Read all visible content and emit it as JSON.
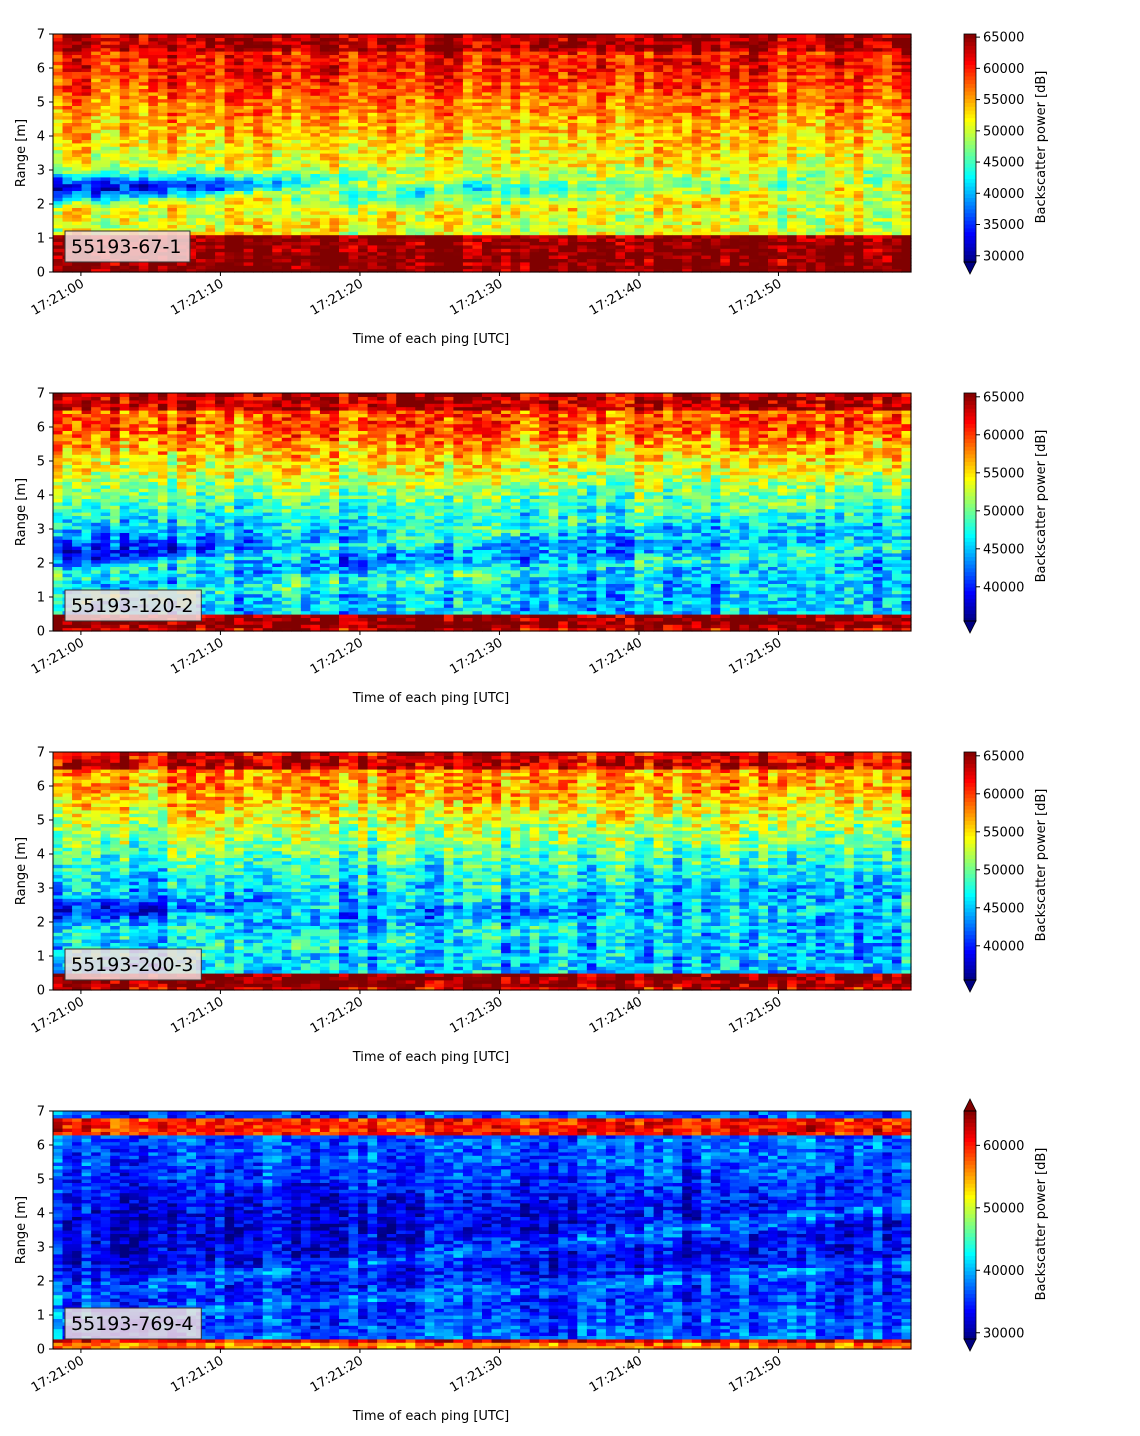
{
  "chart_data": [
    {
      "type": "heatmap",
      "panel_label": "55193-67-1",
      "xlabel": "Time of each ping [UTC]",
      "ylabel": "Range [m]",
      "colorbar_label": "Backscatter power [dB]",
      "x_ticks": [
        "17:21:00",
        "17:21:10",
        "17:21:20",
        "17:21:30",
        "17:21:40",
        "17:21:50"
      ],
      "xlim_seconds": [
        -2,
        59.5
      ],
      "ylim": [
        0,
        7
      ],
      "y_ticks": [
        0,
        1,
        2,
        3,
        4,
        5,
        6,
        7
      ],
      "clim": [
        29000,
        65500
      ],
      "colorbar_ticks": [
        30000,
        35000,
        40000,
        45000,
        50000,
        55000,
        60000,
        65000
      ],
      "colorbar_extend": "min",
      "colormap": "jet",
      "features": {
        "surface_level": 65000,
        "surface_range": [
          0.2,
          1.1
        ],
        "upper_level": 60000,
        "mid_level": 50000,
        "dark_layer_level": 31000,
        "dark_layer_range": [
          1.9,
          3.1
        ],
        "tracks_level": 54000
      }
    },
    {
      "type": "heatmap",
      "panel_label": "55193-120-2",
      "xlabel": "Time of each ping [UTC]",
      "ylabel": "Range [m]",
      "colorbar_label": "Backscatter power [dB]",
      "x_ticks": [
        "17:21:00",
        "17:21:10",
        "17:21:20",
        "17:21:30",
        "17:21:40",
        "17:21:50"
      ],
      "xlim_seconds": [
        -2,
        59.5
      ],
      "ylim": [
        0,
        7
      ],
      "y_ticks": [
        0,
        1,
        2,
        3,
        4,
        5,
        6,
        7
      ],
      "clim": [
        35500,
        65500
      ],
      "colorbar_ticks": [
        40000,
        45000,
        50000,
        55000,
        60000,
        65000
      ],
      "colorbar_extend": "min",
      "colormap": "jet",
      "features": {
        "surface_level": 65000,
        "surface_range": [
          0.1,
          0.55
        ],
        "upper_level": 59000,
        "mid_level": 45000,
        "dark_layer_level": 38000,
        "dark_layer_range": [
          1.6,
          3.0
        ],
        "tracks_level": 50000
      }
    },
    {
      "type": "heatmap",
      "panel_label": "55193-200-3",
      "xlabel": "Time of each ping [UTC]",
      "ylabel": "Range [m]",
      "colorbar_label": "Backscatter power [dB]",
      "x_ticks": [
        "17:21:00",
        "17:21:10",
        "17:21:20",
        "17:21:30",
        "17:21:40",
        "17:21:50"
      ],
      "xlim_seconds": [
        -2,
        59.5
      ],
      "ylim": [
        0,
        7
      ],
      "y_ticks": [
        0,
        1,
        2,
        3,
        4,
        5,
        6,
        7
      ],
      "clim": [
        35500,
        65500
      ],
      "colorbar_ticks": [
        40000,
        45000,
        50000,
        55000,
        60000,
        65000
      ],
      "colorbar_extend": "min",
      "colormap": "jet",
      "features": {
        "surface_level": 65000,
        "surface_range": [
          0.1,
          0.55
        ],
        "upper_level": 57000,
        "mid_level": 45000,
        "dark_layer_level": 39000,
        "dark_layer_range": [
          1.8,
          2.9
        ],
        "tracks_level": 48000
      }
    },
    {
      "type": "heatmap",
      "panel_label": "55193-769-4",
      "xlabel": "Time of each ping [UTC]",
      "ylabel": "Range [m]",
      "colorbar_label": "Backscatter power [dB]",
      "x_ticks": [
        "17:21:00",
        "17:21:10",
        "17:21:20",
        "17:21:30",
        "17:21:40",
        "17:21:50"
      ],
      "xlim_seconds": [
        -2,
        59.5
      ],
      "ylim": [
        0,
        7
      ],
      "y_ticks": [
        0,
        1,
        2,
        3,
        4,
        5,
        6,
        7
      ],
      "clim": [
        29000,
        65500
      ],
      "colorbar_ticks": [
        30000,
        40000,
        50000,
        60000
      ],
      "colorbar_extend": "both",
      "colormap": "jet",
      "features": {
        "surface_level": 62000,
        "surface_range": [
          0.2,
          0.35
        ],
        "upper_level": 36000,
        "mid_level": 35000,
        "dark_layer_level": 33000,
        "dark_layer_range": [
          2.5,
          5.0
        ],
        "tracks_level": 40000,
        "top_band_level": 60000,
        "top_band_range": [
          6.3,
          6.8
        ]
      }
    }
  ]
}
